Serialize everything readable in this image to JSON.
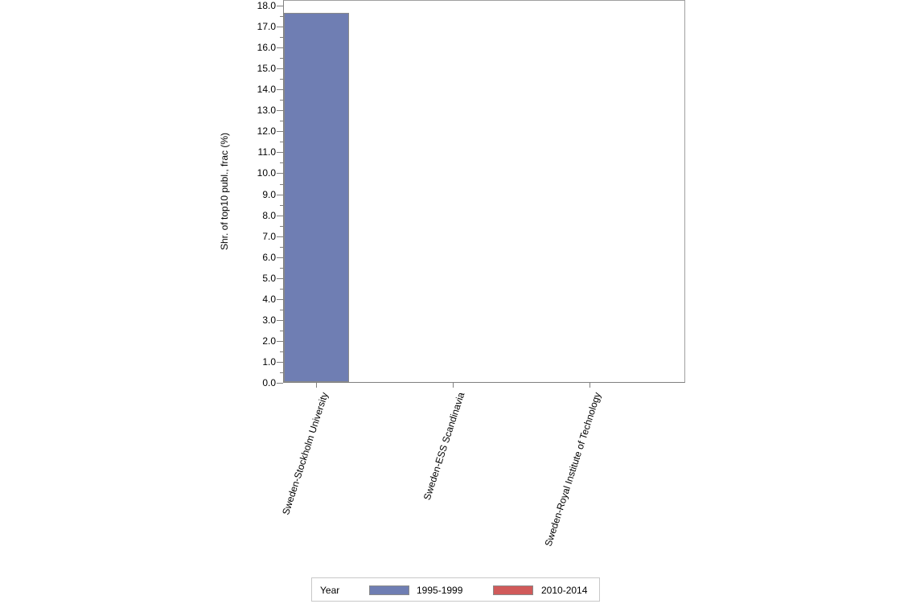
{
  "chart_data": {
    "type": "bar",
    "title": "",
    "xlabel": "",
    "ylabel": "Shr. of top10 publ., frac (%)",
    "ylim": [
      0,
      18
    ],
    "yticks": [
      "0.0",
      "1.0",
      "2.0",
      "3.0",
      "4.0",
      "5.0",
      "6.0",
      "7.0",
      "8.0",
      "9.0",
      "10.0",
      "11.0",
      "12.0",
      "13.0",
      "14.0",
      "15.0",
      "16.0",
      "17.0",
      "18.0"
    ],
    "categories": [
      "Sweden-Stockholm University",
      "Sweden-ESS Scandinavia",
      "Sweden-Royal Institute of Technology"
    ],
    "series": [
      {
        "name": "1995-1999",
        "color": "#6f7eb3",
        "values": [
          17.6,
          0,
          0
        ]
      },
      {
        "name": "2010-2014",
        "color": "#d05a5a",
        "values": [
          0,
          0,
          0
        ]
      }
    ],
    "legend": {
      "title": "Year",
      "position": "bottom"
    },
    "grid": false
  }
}
